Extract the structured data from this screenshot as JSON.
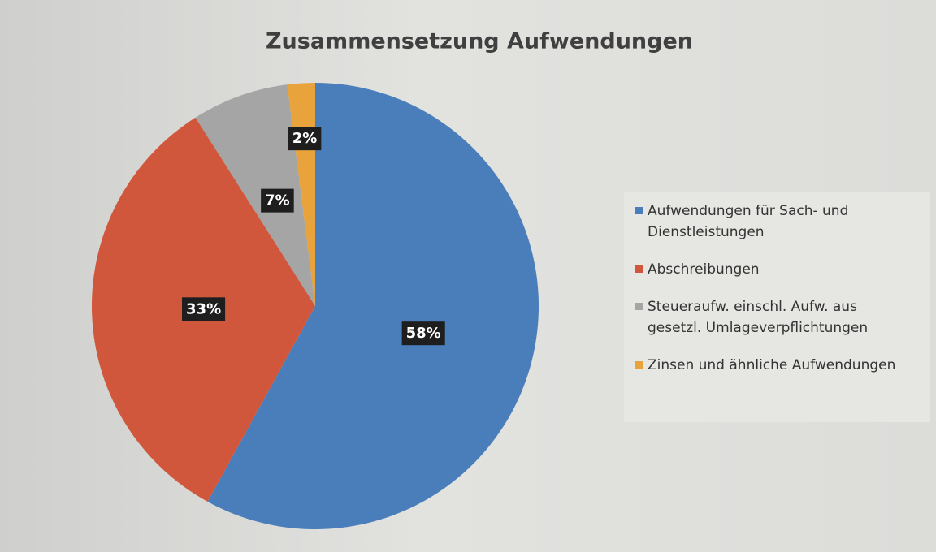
{
  "chart_data": {
    "type": "pie",
    "title": "Zusammensetzung  Aufwendungen",
    "categories": [
      "Aufwendungen für Sach- und Dienstleistungen",
      "Abschreibungen",
      "Steueraufw. einschl. Aufw. aus gesetzl. Umlageverpflichtungen",
      "Zinsen und ähnliche Aufwendungen"
    ],
    "values": [
      58,
      33,
      7,
      2
    ],
    "value_labels": [
      "58%",
      "33%",
      "7%",
      "2%"
    ],
    "colors": [
      "#4a7ebb",
      "#d0573c",
      "#a5a5a5",
      "#e8a33d"
    ],
    "legend": "right"
  }
}
